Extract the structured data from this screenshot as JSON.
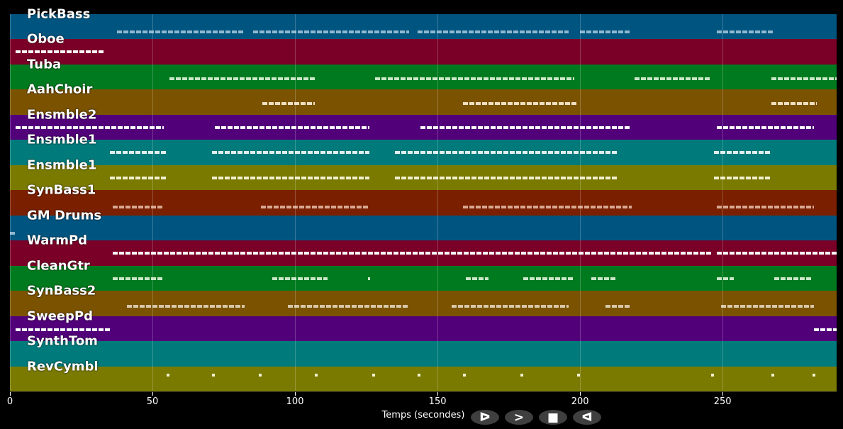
{
  "x_axis": {
    "label": "Temps (secondes)",
    "min": 0,
    "max": 290,
    "ticks": [
      0,
      50,
      100,
      150,
      200,
      250
    ]
  },
  "tracks": [
    {
      "name": "PickBass",
      "color": "#005580",
      "note_color": "#8fb8d0",
      "level": 0.65,
      "notes": [
        [
          37.6,
          82.3
        ],
        [
          85.3,
          140
        ],
        [
          143,
          196
        ],
        [
          200,
          218
        ],
        [
          248,
          268
        ]
      ]
    },
    {
      "name": "Oboe",
      "color": "#7a0028",
      "note_color": "#ffffff",
      "level": 0.45,
      "notes": [
        [
          2,
          33
        ]
      ]
    },
    {
      "name": "Tuba",
      "color": "#007a1f",
      "note_color": "#c8e8c8",
      "level": 0.5,
      "notes": [
        [
          56,
          107
        ],
        [
          128,
          198
        ],
        [
          219,
          246
        ],
        [
          267,
          290
        ]
      ]
    },
    {
      "name": "AahChoir",
      "color": "#7a5200",
      "note_color": "#f0e0c0",
      "level": 0.5,
      "notes": [
        [
          88.5,
          107
        ],
        [
          159,
          199
        ],
        [
          267,
          283
        ]
      ]
    },
    {
      "name": "Ensmble2",
      "color": "#52007a",
      "note_color": "#ffffff",
      "level": 0.45,
      "notes": [
        [
          2,
          54
        ],
        [
          72,
          126
        ],
        [
          144,
          218
        ],
        [
          248,
          282
        ]
      ]
    },
    {
      "name": "Ensmble1",
      "color": "#007a7a",
      "note_color": "#e0f0f0",
      "level": 0.45,
      "notes": [
        [
          35,
          55
        ],
        [
          71,
          126
        ],
        [
          135,
          213
        ],
        [
          247,
          267
        ]
      ]
    },
    {
      "name": "Ensmble1",
      "color": "#7a7a00",
      "note_color": "#f0f0d0",
      "level": 0.45,
      "notes": [
        [
          35,
          55
        ],
        [
          71,
          126
        ],
        [
          135,
          213
        ],
        [
          247,
          267
        ]
      ]
    },
    {
      "name": "SynBass1",
      "color": "#7a2000",
      "note_color": "#d8a890",
      "level": 0.6,
      "notes": [
        [
          36,
          54
        ],
        [
          88,
          126
        ],
        [
          159,
          218
        ],
        [
          248,
          282
        ]
      ]
    },
    {
      "name": "GM Drums",
      "color": "#005580",
      "note_color": "#8fb8d0",
      "level": 0.65,
      "notes": [
        [
          0,
          2
        ]
      ]
    },
    {
      "name": "WarmPd",
      "color": "#7a0028",
      "note_color": "#ffffff",
      "level": 0.45,
      "notes": [
        [
          36,
          246
        ],
        [
          248,
          290
        ]
      ]
    },
    {
      "name": "CleanGtr",
      "color": "#007a1f",
      "note_color": "#c8e8c8",
      "level": 0.45,
      "notes": [
        [
          36,
          54
        ],
        [
          92,
          111.5
        ],
        [
          125.5,
          126
        ],
        [
          160,
          168
        ],
        [
          180,
          198
        ],
        [
          204,
          213
        ],
        [
          248,
          254
        ],
        [
          268,
          281.5
        ]
      ]
    },
    {
      "name": "SynBass2",
      "color": "#7a5200",
      "note_color": "#d8c8a8",
      "level": 0.55,
      "notes": [
        [
          41,
          82.3
        ],
        [
          97.5,
          140
        ],
        [
          155,
          196
        ],
        [
          209,
          218
        ],
        [
          249.5,
          282
        ]
      ]
    },
    {
      "name": "SweepPd",
      "color": "#52007a",
      "note_color": "#ffffff",
      "level": 0.5,
      "notes": [
        [
          2,
          35.6
        ],
        [
          282,
          290
        ]
      ]
    },
    {
      "name": "SynthTom",
      "color": "#007a7a",
      "note_color": "#ffffff",
      "level": 0.5,
      "notes": []
    },
    {
      "name": "RevCymbl",
      "color": "#7a7a00",
      "note_color": "#f0f0d0",
      "level": 0.3,
      "notes": [
        [
          55,
          56
        ],
        [
          71,
          72
        ],
        [
          87.3,
          88.3
        ],
        [
          107,
          108
        ],
        [
          127,
          128
        ],
        [
          143,
          144
        ],
        [
          159,
          160
        ],
        [
          179,
          180
        ],
        [
          199,
          200
        ],
        [
          246,
          247
        ],
        [
          267,
          268
        ],
        [
          281.5,
          282.5
        ]
      ]
    }
  ],
  "controls": [
    {
      "name": "play-button",
      "glyph": "ᐅ"
    },
    {
      "name": "forward-button",
      "glyph": ">"
    },
    {
      "name": "stop-button",
      "glyph": "■"
    },
    {
      "name": "rewind-button",
      "glyph": "ᐊ"
    }
  ]
}
